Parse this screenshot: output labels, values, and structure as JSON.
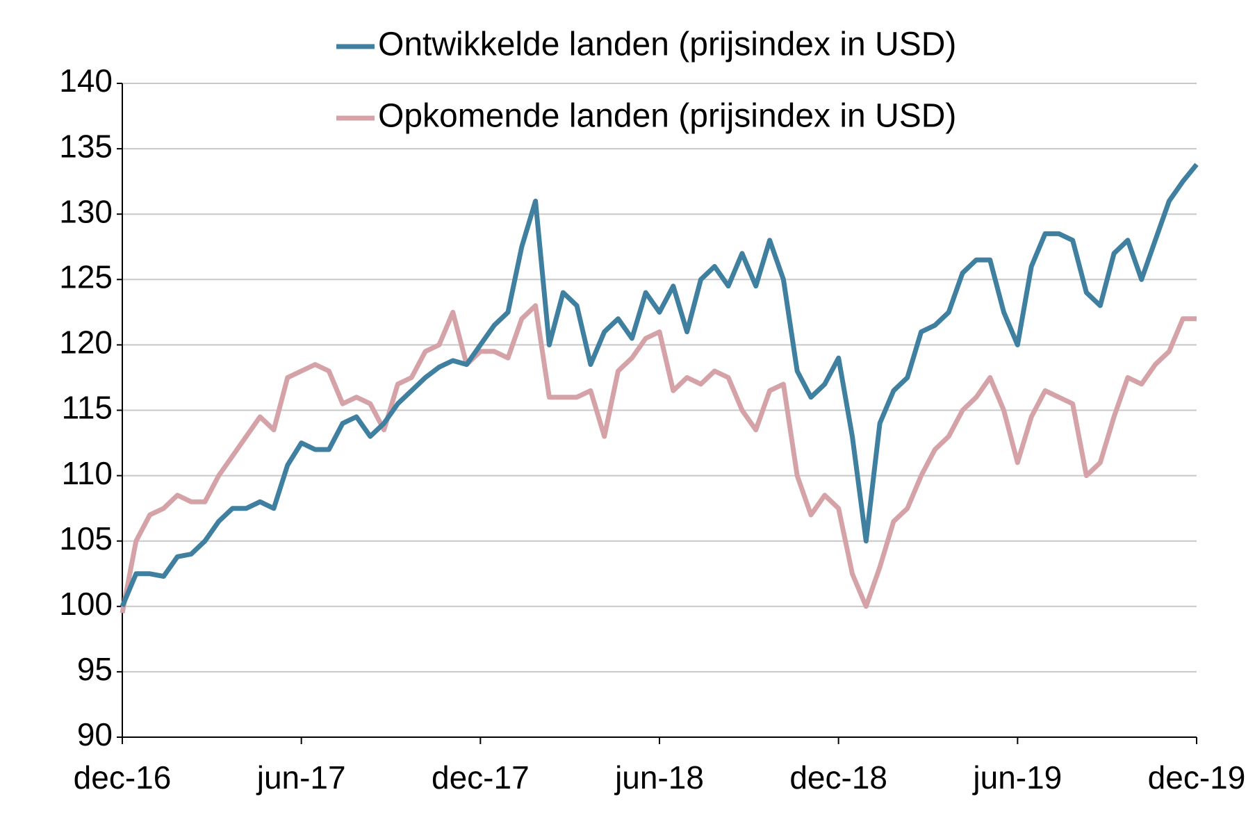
{
  "chart_data": {
    "type": "line",
    "categories": [
      "dec-16",
      null,
      null,
      null,
      null,
      null,
      null,
      null,
      null,
      null,
      null,
      null,
      null,
      "jun-17",
      null,
      null,
      null,
      null,
      null,
      null,
      null,
      null,
      null,
      null,
      null,
      null,
      "dec-17",
      null,
      null,
      null,
      null,
      null,
      null,
      null,
      null,
      null,
      null,
      null,
      null,
      "jun-18",
      null,
      null,
      null,
      null,
      null,
      null,
      null,
      null,
      null,
      null,
      null,
      null,
      "dec-18",
      null,
      null,
      null,
      null,
      null,
      null,
      null,
      null,
      null,
      null,
      null,
      null,
      "jun-19",
      null,
      null,
      null,
      null,
      null,
      null,
      null,
      null,
      null,
      null,
      null,
      null,
      "dec-19"
    ],
    "series": [
      {
        "name": "Ontwikkelde landen (prijsindex in USD)",
        "color": "#3f7fa0",
        "values": [
          100,
          102.5,
          102.5,
          102.3,
          103.8,
          104,
          105,
          106.5,
          107.5,
          107.5,
          108,
          107.5,
          110.8,
          112.5,
          112,
          112,
          114,
          114.5,
          113,
          114,
          115.5,
          116.5,
          117.5,
          118.3,
          118.8,
          118.5,
          120,
          121.5,
          122.5,
          127.5,
          131,
          120,
          124,
          123,
          118.5,
          121,
          122,
          120.5,
          124,
          122.5,
          124.5,
          121,
          125,
          126,
          124.5,
          127,
          124.5,
          128,
          125,
          118,
          116,
          117,
          119,
          113,
          105,
          114,
          116.5,
          117.5,
          121,
          121.5,
          122.5,
          125.5,
          126.5,
          126.5,
          122.5,
          120,
          126,
          128.5,
          128.5,
          128,
          124,
          123,
          127,
          128,
          125,
          128,
          131,
          132.5,
          133.8
        ]
      },
      {
        "name": "Opkomende landen (prijsindex in USD)",
        "color": "#d4a2a7",
        "values": [
          99.5,
          105,
          107,
          107.5,
          108.5,
          108,
          108,
          110,
          111.5,
          113,
          114.5,
          113.5,
          117.5,
          118,
          118.5,
          118,
          115.5,
          116,
          115.5,
          113.5,
          117,
          117.5,
          119.5,
          120,
          122.5,
          118.5,
          119.5,
          119.5,
          119,
          122,
          123,
          116,
          116,
          116,
          116.5,
          113,
          118,
          119,
          120.5,
          121,
          116.5,
          117.5,
          117,
          118,
          117.5,
          115,
          113.5,
          116.5,
          117,
          110,
          107,
          108.5,
          107.5,
          102.5,
          100,
          103,
          106.5,
          107.5,
          110,
          112,
          113,
          115,
          116,
          117.5,
          115,
          111,
          114.5,
          116.5,
          116,
          115.5,
          110,
          111,
          114.5,
          117.5,
          117,
          118.5,
          119.5,
          122,
          122
        ]
      }
    ],
    "ylim": [
      90,
      140
    ],
    "yticks": [
      90,
      95,
      100,
      105,
      110,
      115,
      120,
      125,
      130,
      135,
      140
    ],
    "grid": true,
    "legend": "top"
  }
}
